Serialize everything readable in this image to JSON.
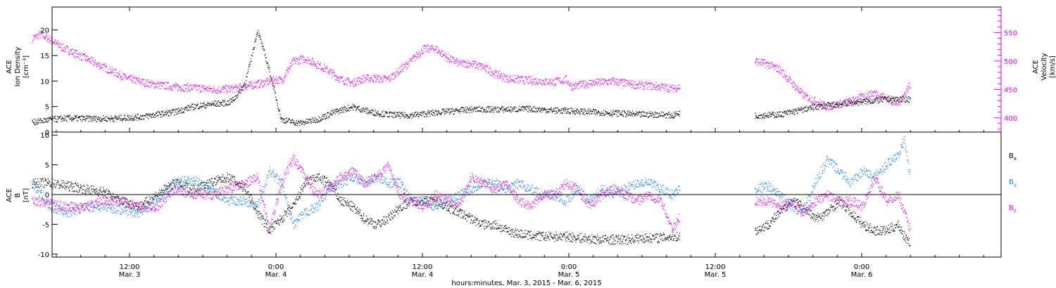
{
  "colors": {
    "black": "#000000",
    "magenta": "#e600e6",
    "blue": "#1e88e5"
  },
  "chart_data": [
    {
      "type": "scatter",
      "panel": "top",
      "ylabel_left": [
        "ACE",
        "Ion Density",
        "[cm⁻³]"
      ],
      "ylabel_right": [
        "ACE",
        "Velocity",
        "[km/s]"
      ],
      "ylim_left": [
        0,
        24.5
      ],
      "yticks_left": [
        0,
        5,
        10,
        15,
        20
      ],
      "ylim_right": [
        375,
        595
      ],
      "yticks_right": [
        400,
        450,
        500,
        550
      ],
      "series": [
        {
          "axis": "left",
          "color": "black",
          "x": [
            0,
            3,
            6,
            9,
            12,
            15,
            18,
            21,
            24,
            27,
            30,
            33,
            34,
            35,
            36,
            38,
            40,
            42,
            45,
            48,
            51,
            54,
            57,
            60,
            63,
            66,
            69,
            72,
            74,
            75,
            78,
            80,
            84,
            88,
            91,
            94,
            98,
            102,
            106,
            108,
            109,
            122,
            126,
            128,
            132,
            136,
            140,
            144,
            148
          ],
          "y": [
            2,
            2.5,
            2.8,
            2.7,
            2.7,
            2.8,
            3,
            3.5,
            4,
            5,
            5.5,
            5.8,
            6.5,
            8,
            10,
            20,
            12,
            2.5,
            1.8,
            2.5,
            4,
            5,
            4,
            3.5,
            3.3,
            3.6,
            4,
            4.3,
            4.5,
            4.5,
            4.5,
            4.5,
            4.6,
            4.3,
            4.2,
            4,
            3.8,
            3.5,
            3.5,
            3.3,
            3.8,
            3.3,
            3.5,
            4,
            5,
            5.5,
            6,
            6.5,
            6.5
          ]
        },
        {
          "axis": "right",
          "color": "magenta",
          "x": [
            0,
            1.5,
            3,
            5,
            8,
            12,
            16,
            20,
            24,
            28,
            31,
            34,
            37,
            39,
            41,
            42,
            44,
            46,
            48,
            50,
            52,
            54,
            56,
            58,
            60,
            62,
            64,
            66,
            68,
            70,
            72,
            74,
            76,
            78,
            80,
            84,
            88,
            90,
            91,
            94,
            98,
            102,
            106,
            108,
            109,
            122,
            124,
            126,
            130,
            134,
            138,
            142,
            146,
            148
          ],
          "y": [
            540,
            548,
            538,
            525,
            510,
            490,
            470,
            460,
            455,
            453,
            450,
            452,
            458,
            462,
            468,
            466,
            500,
            505,
            495,
            483,
            468,
            462,
            470,
            470,
            468,
            485,
            502,
            522,
            522,
            506,
            496,
            496,
            490,
            478,
            470,
            466,
            464,
            468,
            455,
            462,
            465,
            458,
            455,
            452,
            455,
            500,
            495,
            485,
            440,
            420,
            430,
            445,
            425,
            460
          ]
        }
      ]
    },
    {
      "type": "scatter",
      "panel": "bottom",
      "ylabel_left": [
        "ACE",
        "B",
        "[nT]"
      ],
      "ylim": [
        -10.5,
        10.5
      ],
      "yticks": [
        -10,
        -5,
        0,
        5,
        10
      ],
      "zero_line": true,
      "legend": [
        "Bx",
        "By",
        "Bz"
      ],
      "series": [
        {
          "name": "Bx",
          "color": "black",
          "x": [
            0,
            3,
            6,
            9,
            12,
            15,
            18,
            21,
            24,
            27,
            30,
            33,
            36,
            38,
            40,
            42,
            44,
            46,
            48,
            50,
            52,
            54,
            56,
            58,
            60,
            62,
            64,
            66,
            68,
            70,
            72,
            74,
            76,
            78,
            80,
            82,
            84,
            86,
            88,
            90,
            92,
            94,
            96,
            98,
            100,
            102,
            104,
            106,
            108,
            109,
            122,
            124,
            126,
            128,
            130,
            132,
            134,
            136,
            138,
            140,
            142,
            144,
            146,
            147,
            148
          ],
          "y": [
            2,
            2,
            1.5,
            1,
            0.5,
            -1,
            -2,
            0,
            2,
            1,
            2,
            3,
            1,
            -3,
            -6,
            -4,
            -2,
            2,
            3,
            2,
            -1,
            -2,
            -4,
            -5,
            -4,
            -2,
            -1,
            -1,
            -1,
            -2,
            -3,
            -4,
            -5,
            -5,
            -6,
            -6.5,
            -6.8,
            -7,
            -7,
            -7,
            -7.2,
            -7.4,
            -7.5,
            -7.5,
            -7.5,
            -7.3,
            -7.2,
            -7.2,
            -7,
            -7,
            -6,
            -5,
            -3,
            -1,
            -2,
            -4,
            -3,
            -1,
            -3,
            -5,
            -6,
            -6,
            -5,
            -7,
            -8
          ]
        },
        {
          "name": "By",
          "color": "blue",
          "x": [
            0,
            3,
            6,
            9,
            12,
            15,
            18,
            21,
            24,
            27,
            30,
            33,
            36,
            38,
            40,
            42,
            44,
            46,
            48,
            50,
            52,
            54,
            56,
            58,
            60,
            62,
            64,
            66,
            68,
            70,
            72,
            74,
            76,
            78,
            80,
            82,
            84,
            86,
            88,
            90,
            92,
            94,
            96,
            98,
            100,
            102,
            104,
            106,
            108,
            109,
            122,
            124,
            126,
            128,
            130,
            132,
            134,
            136,
            138,
            140,
            142,
            144,
            146,
            147,
            148
          ],
          "y": [
            2,
            -2,
            -3,
            -2,
            -2,
            -2.5,
            -3,
            -1,
            2,
            2.5,
            1,
            -1,
            -1,
            -2,
            4,
            2,
            -5,
            -3,
            -2,
            1,
            2,
            3,
            2,
            3,
            2,
            2,
            -1,
            -1,
            -2,
            -1,
            0,
            1,
            2,
            2,
            1,
            2,
            1,
            0,
            0,
            -1,
            1,
            -1,
            1,
            0,
            1,
            2,
            2,
            1,
            0,
            1,
            1,
            1.5,
            0,
            -2,
            -3,
            2,
            6,
            4,
            2,
            4,
            3,
            5,
            7,
            9,
            3
          ]
        },
        {
          "name": "Bz",
          "color": "magenta",
          "x": [
            0,
            3,
            6,
            9,
            12,
            15,
            18,
            21,
            24,
            27,
            30,
            33,
            36,
            38,
            40,
            42,
            44,
            46,
            48,
            50,
            52,
            54,
            56,
            58,
            60,
            62,
            64,
            66,
            68,
            70,
            72,
            74,
            76,
            78,
            80,
            82,
            84,
            86,
            88,
            90,
            92,
            94,
            96,
            98,
            100,
            102,
            104,
            106,
            108,
            109,
            122,
            124,
            126,
            128,
            130,
            132,
            134,
            136,
            138,
            140,
            142,
            144,
            146,
            147,
            148
          ],
          "y": [
            -1,
            -1.5,
            -2,
            -2,
            -1,
            -1,
            -2,
            -2,
            1,
            0,
            0,
            1,
            2,
            3,
            -6,
            2,
            6,
            3,
            0,
            1,
            3,
            4,
            2,
            3,
            5,
            0,
            -1,
            -2,
            0,
            -1,
            -2,
            3,
            2,
            1,
            2,
            -1,
            -2,
            0,
            0,
            2,
            1,
            -2,
            0,
            1,
            0,
            -1,
            0,
            -1,
            -6,
            -4,
            -1,
            -1,
            -2,
            -1,
            -3,
            -1,
            0,
            -1,
            -1,
            -2,
            3,
            -1,
            0,
            -3,
            -6
          ]
        }
      ]
    }
  ],
  "xaxis": {
    "ticks": [
      {
        "time": "12:00",
        "date": "Mar. 3"
      },
      {
        "time": "0:00",
        "date": "Mar. 4"
      },
      {
        "time": "12:00",
        "date": "Mar. 4"
      },
      {
        "time": "0:00",
        "date": "Mar. 5"
      },
      {
        "time": "12:00",
        "date": "Mar. 5"
      },
      {
        "time": "0:00",
        "date": "Mar. 6"
      }
    ],
    "tick_hours": [
      12,
      24,
      36,
      48,
      60,
      72
    ],
    "xlim_hours": [
      4,
      86
    ],
    "label": "hours:minutes, Mar.  3, 2015 - Mar.  6, 2015"
  }
}
